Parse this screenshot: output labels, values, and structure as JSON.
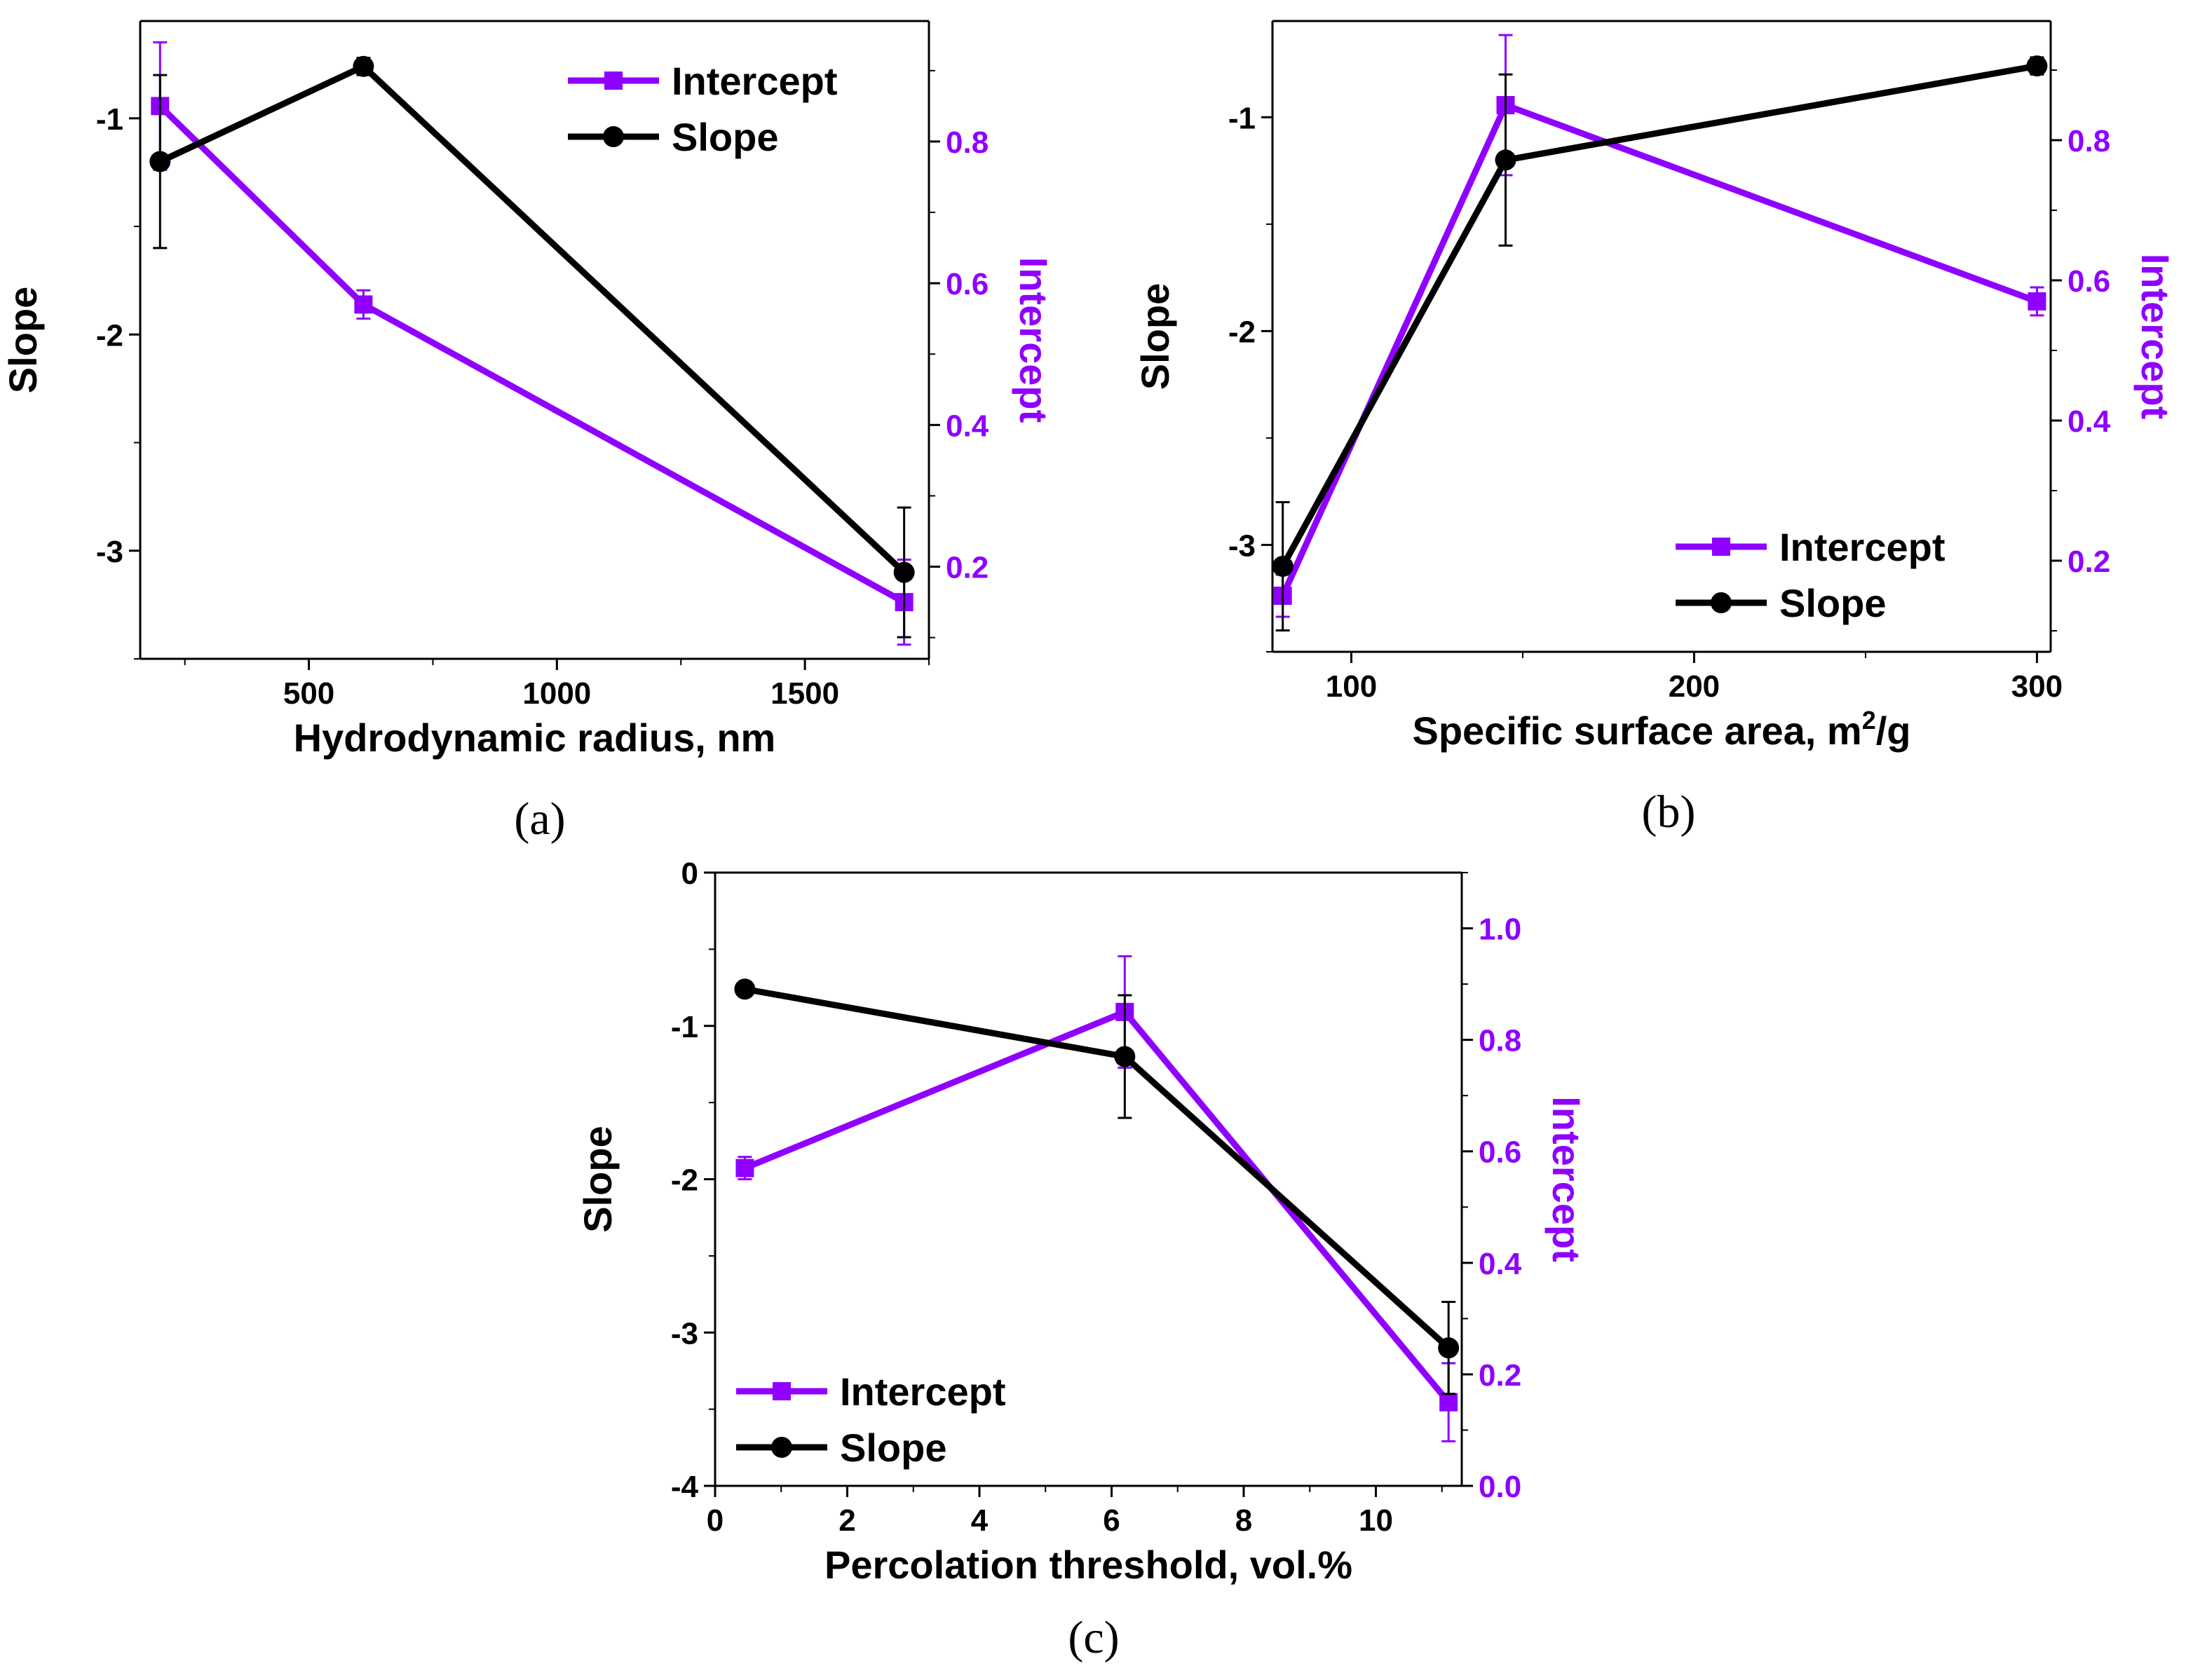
{
  "colors": {
    "intercept": "#8F00FF",
    "slope": "#000000"
  },
  "chart_data": [
    {
      "type": "line",
      "panel_label": "(a)",
      "xlabel": "Hydrodynamic radius, nm",
      "ylabel_left": "Slope",
      "ylabel_right": "Intercept",
      "xlim": [
        160,
        1750
      ],
      "ylim_left": [
        -3.5,
        -0.55
      ],
      "ylim_right": [
        0.07,
        0.97
      ],
      "x_ticks": [
        500,
        1000,
        1500
      ],
      "y_ticks_left": [
        -1,
        -2,
        -3
      ],
      "y_ticks_right": [
        0.2,
        0.4,
        0.6,
        0.8
      ],
      "legend": [
        "Intercept",
        "Slope"
      ],
      "legend_position": "top-right",
      "series": [
        {
          "name": "Intercept",
          "axis": "right",
          "x": [
            200,
            610,
            1700
          ],
          "y": [
            0.85,
            0.57,
            0.15
          ],
          "err": [
            0.09,
            0.02,
            0.06
          ]
        },
        {
          "name": "Slope",
          "axis": "left",
          "x": [
            200,
            610,
            1700
          ],
          "y": [
            -1.2,
            -0.76,
            -3.1
          ],
          "err": [
            0.4,
            0.04,
            0.3
          ]
        }
      ]
    },
    {
      "type": "line",
      "panel_label": "(b)",
      "xlabel": "Specific surface area, m",
      "xlabel_sup": "2",
      "xlabel_suffix": "/g",
      "ylabel_left": "Slope",
      "ylabel_right": "Intercept",
      "xlim": [
        77,
        304
      ],
      "ylim_left": [
        -3.5,
        -0.55
      ],
      "ylim_right": [
        0.07,
        0.97
      ],
      "x_ticks": [
        100,
        200,
        300
      ],
      "y_ticks_left": [
        -1,
        -2,
        -3
      ],
      "y_ticks_right": [
        0.2,
        0.4,
        0.6,
        0.8
      ],
      "legend": [
        "Intercept",
        "Slope"
      ],
      "legend_position": "bottom-right",
      "series": [
        {
          "name": "Intercept",
          "axis": "right",
          "x": [
            80,
            145,
            300
          ],
          "y": [
            0.15,
            0.85,
            0.57
          ],
          "err": [
            0.03,
            0.1,
            0.02
          ]
        },
        {
          "name": "Slope",
          "axis": "left",
          "x": [
            80,
            145,
            300
          ],
          "y": [
            -3.1,
            -1.2,
            -0.76
          ],
          "err": [
            0.3,
            0.4,
            0.04
          ]
        }
      ]
    },
    {
      "type": "line",
      "panel_label": "(c)",
      "xlabel": "Percolation threshold, vol.%",
      "ylabel_left": "Slope",
      "ylabel_right": "Intercept",
      "xlim": [
        0,
        11.3
      ],
      "ylim_left": [
        -4,
        0
      ],
      "ylim_right": [
        0,
        1.1
      ],
      "x_ticks": [
        0,
        2,
        4,
        6,
        8,
        10
      ],
      "y_ticks_left": [
        0,
        -1,
        -2,
        -3,
        -4
      ],
      "y_ticks_right": [
        0.0,
        0.2,
        0.4,
        0.6,
        0.8,
        1.0
      ],
      "legend": [
        "Intercept",
        "Slope"
      ],
      "legend_position": "bottom-left",
      "series": [
        {
          "name": "Intercept",
          "axis": "right",
          "x": [
            0.45,
            6.2,
            11.1
          ],
          "y": [
            0.57,
            0.85,
            0.15
          ],
          "err": [
            0.02,
            0.1,
            0.07
          ]
        },
        {
          "name": "Slope",
          "axis": "left",
          "x": [
            0.45,
            6.2,
            11.1
          ],
          "y": [
            -0.76,
            -1.2,
            -3.1
          ],
          "err": [
            0.04,
            0.4,
            0.3
          ]
        }
      ]
    }
  ]
}
